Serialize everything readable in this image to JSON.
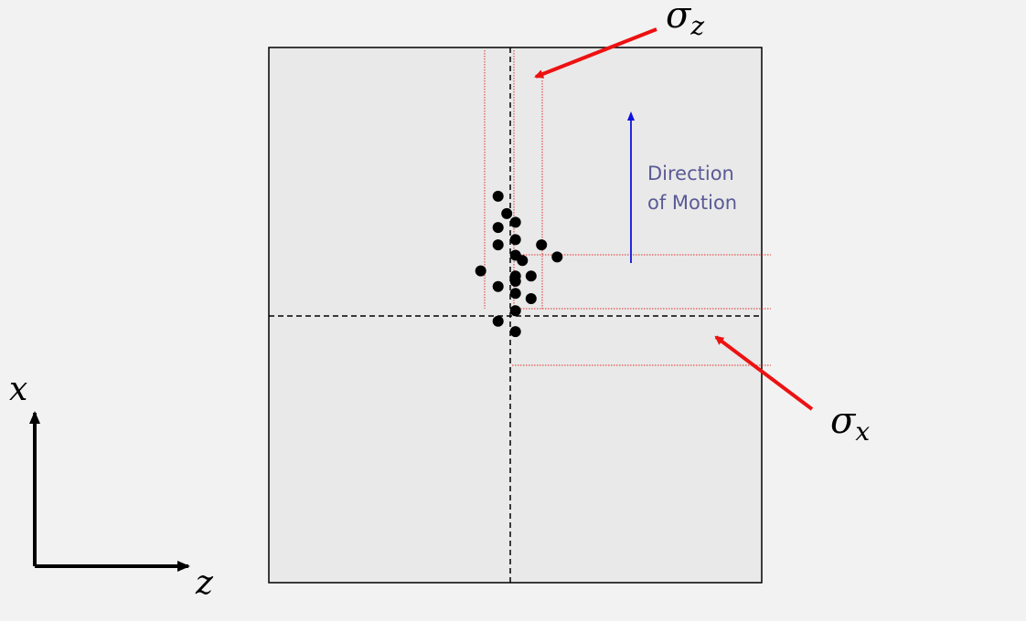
{
  "labels": {
    "sigma_z": "σ",
    "sigma_z_sub": "z",
    "sigma_x": "σ",
    "sigma_x_sub": "x",
    "motion_line1": "Direction",
    "motion_line2": "of Motion",
    "axis_x": "x",
    "axis_z": "z"
  },
  "colors": {
    "background": "#f2f2f2",
    "box_fill": "#e9e9e9",
    "box_stroke": "#000000",
    "particle": "#000000",
    "guide_lines": "#e0302a",
    "arrows": "#ee1111",
    "motion_arrow": "#1010e0",
    "motion_text": "#5a5a96"
  },
  "particles": [
    {
      "z": -0.7,
      "x": 6.9
    },
    {
      "z": -0.2,
      "x": 5.9
    },
    {
      "z": 0.3,
      "x": 5.4
    },
    {
      "z": -0.7,
      "x": 5.1
    },
    {
      "z": 0.3,
      "x": 4.4
    },
    {
      "z": -0.7,
      "x": 4.1
    },
    {
      "z": 1.8,
      "x": 4.1
    },
    {
      "z": 0.3,
      "x": 3.5
    },
    {
      "z": 0.7,
      "x": 3.2
    },
    {
      "z": 2.7,
      "x": 3.4
    },
    {
      "z": -1.7,
      "x": 2.6
    },
    {
      "z": 0.3,
      "x": 2.3
    },
    {
      "z": 1.2,
      "x": 2.3
    },
    {
      "z": 0.3,
      "x": 2.0
    },
    {
      "z": -0.7,
      "x": 1.7
    },
    {
      "z": 0.3,
      "x": 1.3
    },
    {
      "z": 1.2,
      "x": 1.0
    },
    {
      "z": 0.3,
      "x": 0.3
    },
    {
      "z": -0.7,
      "x": -0.3
    },
    {
      "z": 0.3,
      "x": -0.9
    }
  ]
}
